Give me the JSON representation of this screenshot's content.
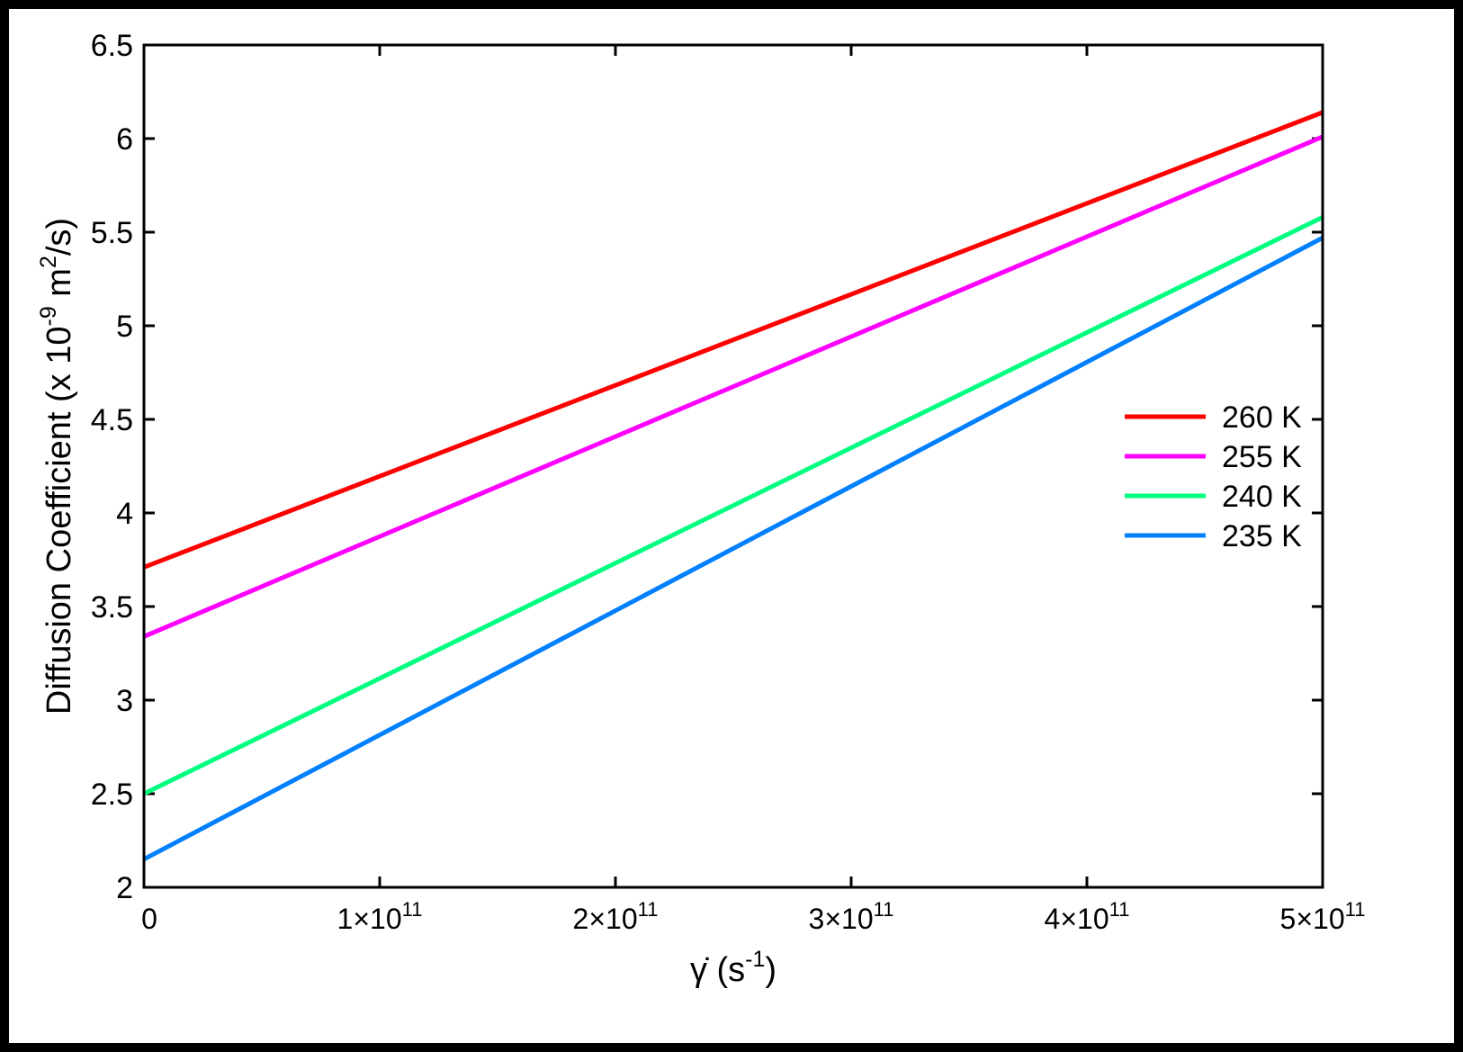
{
  "chart_data": {
    "type": "line",
    "title": "",
    "xlabel": {
      "main": "γ̇ (s",
      "sup": "-1",
      "tail": ")"
    },
    "ylabel": {
      "main": "Diffusion Coefficient (x 10",
      "sup": "-9",
      "mid": " m",
      "sup2": "2",
      "tail": "/s)"
    },
    "xlim": [
      0,
      500000000000
    ],
    "ylim": [
      2,
      6.5
    ],
    "x_ticks": [
      {
        "value": 0,
        "base": "0",
        "exp": ""
      },
      {
        "value": 100000000000,
        "base": "1×10",
        "exp": "11"
      },
      {
        "value": 200000000000,
        "base": "2×10",
        "exp": "11"
      },
      {
        "value": 300000000000,
        "base": "3×10",
        "exp": "11"
      },
      {
        "value": 400000000000,
        "base": "4×10",
        "exp": "11"
      },
      {
        "value": 500000000000,
        "base": "5×10",
        "exp": "11"
      }
    ],
    "y_ticks": [
      {
        "value": 2,
        "label": "2"
      },
      {
        "value": 2.5,
        "label": "2.5"
      },
      {
        "value": 3,
        "label": "3"
      },
      {
        "value": 3.5,
        "label": "3.5"
      },
      {
        "value": 4,
        "label": "4"
      },
      {
        "value": 4.5,
        "label": "4.5"
      },
      {
        "value": 5,
        "label": "5"
      },
      {
        "value": 5.5,
        "label": "5.5"
      },
      {
        "value": 6,
        "label": "6"
      },
      {
        "value": 6.5,
        "label": "6.5"
      }
    ],
    "legend_position": "right",
    "series": [
      {
        "name": "260 K",
        "color": "#ff0000",
        "x": [
          0,
          500000000000
        ],
        "y": [
          3.71,
          6.14
        ]
      },
      {
        "name": "255 K",
        "color": "#ff00ff",
        "x": [
          0,
          500000000000
        ],
        "y": [
          3.34,
          6.01
        ]
      },
      {
        "name": "240 K",
        "color": "#00ff80",
        "x": [
          0,
          500000000000
        ],
        "y": [
          2.5,
          5.58
        ]
      },
      {
        "name": "235 K",
        "color": "#0080ff",
        "x": [
          0,
          500000000000
        ],
        "y": [
          2.15,
          5.47
        ]
      }
    ]
  }
}
